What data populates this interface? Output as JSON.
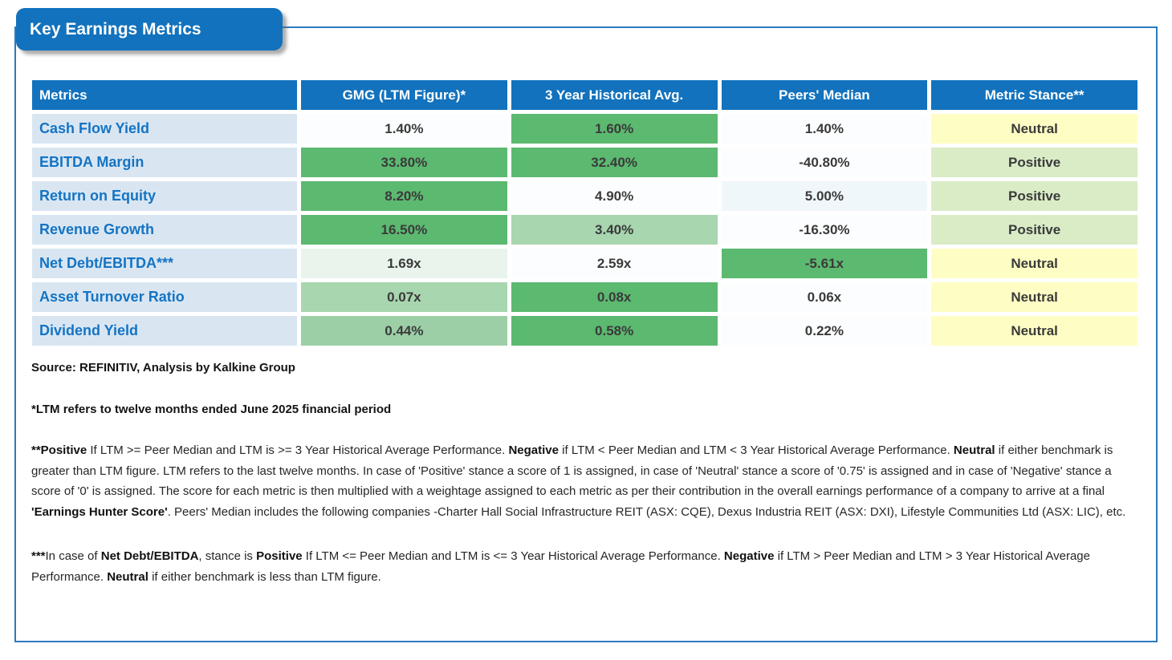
{
  "banner": {
    "title": "Key Earnings Metrics"
  },
  "palette": {
    "banner_blue": "#1272bd",
    "header_blue": "#1272bd",
    "border_blue": "#2b7ac0",
    "label_bg": "#d9e6f2",
    "label_text": "#1474c4",
    "value_text": "#3a3a3a",
    "green": "#5cb970",
    "green_light": "#a7d6af",
    "green_light2": "#9ccfa6",
    "green_pale": "#e9f4ec",
    "white_cell": "#fcfdfe",
    "blue_pale": "#f0f7fa",
    "yellow": "#fefec4",
    "stance_green": "#d9ecc6"
  },
  "table": {
    "columns": [
      "Metrics",
      "GMG (LTM Figure)*",
      "3 Year Historical Avg.",
      "Peers' Median",
      "Metric Stance**"
    ],
    "rows": [
      {
        "metric": "Cash Flow Yield",
        "cells": [
          {
            "text": "1.40%",
            "bg": "white_cell"
          },
          {
            "text": "1.60%",
            "bg": "green"
          },
          {
            "text": "1.40%",
            "bg": "white_cell"
          },
          {
            "text": "Neutral",
            "bg": "yellow"
          }
        ]
      },
      {
        "metric": "EBITDA Margin",
        "cells": [
          {
            "text": "33.80%",
            "bg": "green"
          },
          {
            "text": "32.40%",
            "bg": "green"
          },
          {
            "text": "-40.80%",
            "bg": "white_cell"
          },
          {
            "text": "Positive",
            "bg": "stance_green"
          }
        ]
      },
      {
        "metric": "Return on Equity",
        "cells": [
          {
            "text": "8.20%",
            "bg": "green"
          },
          {
            "text": "4.90%",
            "bg": "white_cell"
          },
          {
            "text": "5.00%",
            "bg": "blue_pale"
          },
          {
            "text": "Positive",
            "bg": "stance_green"
          }
        ]
      },
      {
        "metric": "Revenue Growth",
        "cells": [
          {
            "text": "16.50%",
            "bg": "green"
          },
          {
            "text": "3.40%",
            "bg": "green_light"
          },
          {
            "text": "-16.30%",
            "bg": "white_cell"
          },
          {
            "text": "Positive",
            "bg": "stance_green"
          }
        ]
      },
      {
        "metric": "Net Debt/EBITDA***",
        "cells": [
          {
            "text": "1.69x",
            "bg": "green_pale"
          },
          {
            "text": "2.59x",
            "bg": "white_cell"
          },
          {
            "text": "-5.61x",
            "bg": "green"
          },
          {
            "text": "Neutral",
            "bg": "yellow"
          }
        ]
      },
      {
        "metric": "Asset Turnover Ratio",
        "cells": [
          {
            "text": "0.07x",
            "bg": "green_light"
          },
          {
            "text": "0.08x",
            "bg": "green"
          },
          {
            "text": "0.06x",
            "bg": "white_cell"
          },
          {
            "text": "Neutral",
            "bg": "yellow"
          }
        ]
      },
      {
        "metric": "Dividend Yield",
        "cells": [
          {
            "text": "0.44%",
            "bg": "green_light2"
          },
          {
            "text": "0.58%",
            "bg": "green"
          },
          {
            "text": "0.22%",
            "bg": "white_cell"
          },
          {
            "text": "Neutral",
            "bg": "yellow"
          }
        ]
      }
    ]
  },
  "footnotes": {
    "source": "Source: REFINITIV, Analysis by Kalkine Group",
    "ltm_note": "*LTM refers to twelve months ended June 2025 financial period",
    "stance_note_segments": [
      {
        "t": "**Positive",
        "b": true
      },
      {
        "t": " If LTM >= Peer Median and LTM is >= 3 Year Historical Average Performance. ",
        "b": false
      },
      {
        "t": "Negative",
        "b": true
      },
      {
        "t": " if LTM < Peer Median and LTM < 3 Year Historical Average Performance. ",
        "b": false
      },
      {
        "t": "Neutral",
        "b": true
      },
      {
        "t": " if either benchmark is greater than LTM figure. LTM refers to the last twelve months. In case of 'Positive' stance a score of 1 is assigned, in case of 'Neutral' stance a score of '0.75' is assigned and in case of 'Negative' stance a score of '0' is assigned. The score for each metric is then multiplied with a weightage assigned to each metric as per their contribution in the overall earnings performance of a company to arrive at a final ",
        "b": false
      },
      {
        "t": "'Earnings Hunter Score'",
        "b": true
      },
      {
        "t": ". Peers' Median includes the following companies -Charter Hall Social Infrastructure REIT (ASX: CQE), Dexus Industria REIT (ASX: DXI), Lifestyle Communities Ltd (ASX: LIC), etc.",
        "b": false
      }
    ],
    "netdebt_note_segments": [
      {
        "t": "***",
        "b": true
      },
      {
        "t": "In case of ",
        "b": false
      },
      {
        "t": "Net Debt/EBITDA",
        "b": true
      },
      {
        "t": ", stance is ",
        "b": false
      },
      {
        "t": "Positive",
        "b": true
      },
      {
        "t": " If LTM <= Peer Median and LTM is <= 3 Year Historical Average Performance. ",
        "b": false
      },
      {
        "t": "Negative",
        "b": true
      },
      {
        "t": " if LTM > Peer Median and LTM > 3 Year Historical Average Performance. ",
        "b": false
      },
      {
        "t": "Neutral",
        "b": true
      },
      {
        "t": " if either benchmark is less than LTM figure.",
        "b": false
      }
    ]
  }
}
